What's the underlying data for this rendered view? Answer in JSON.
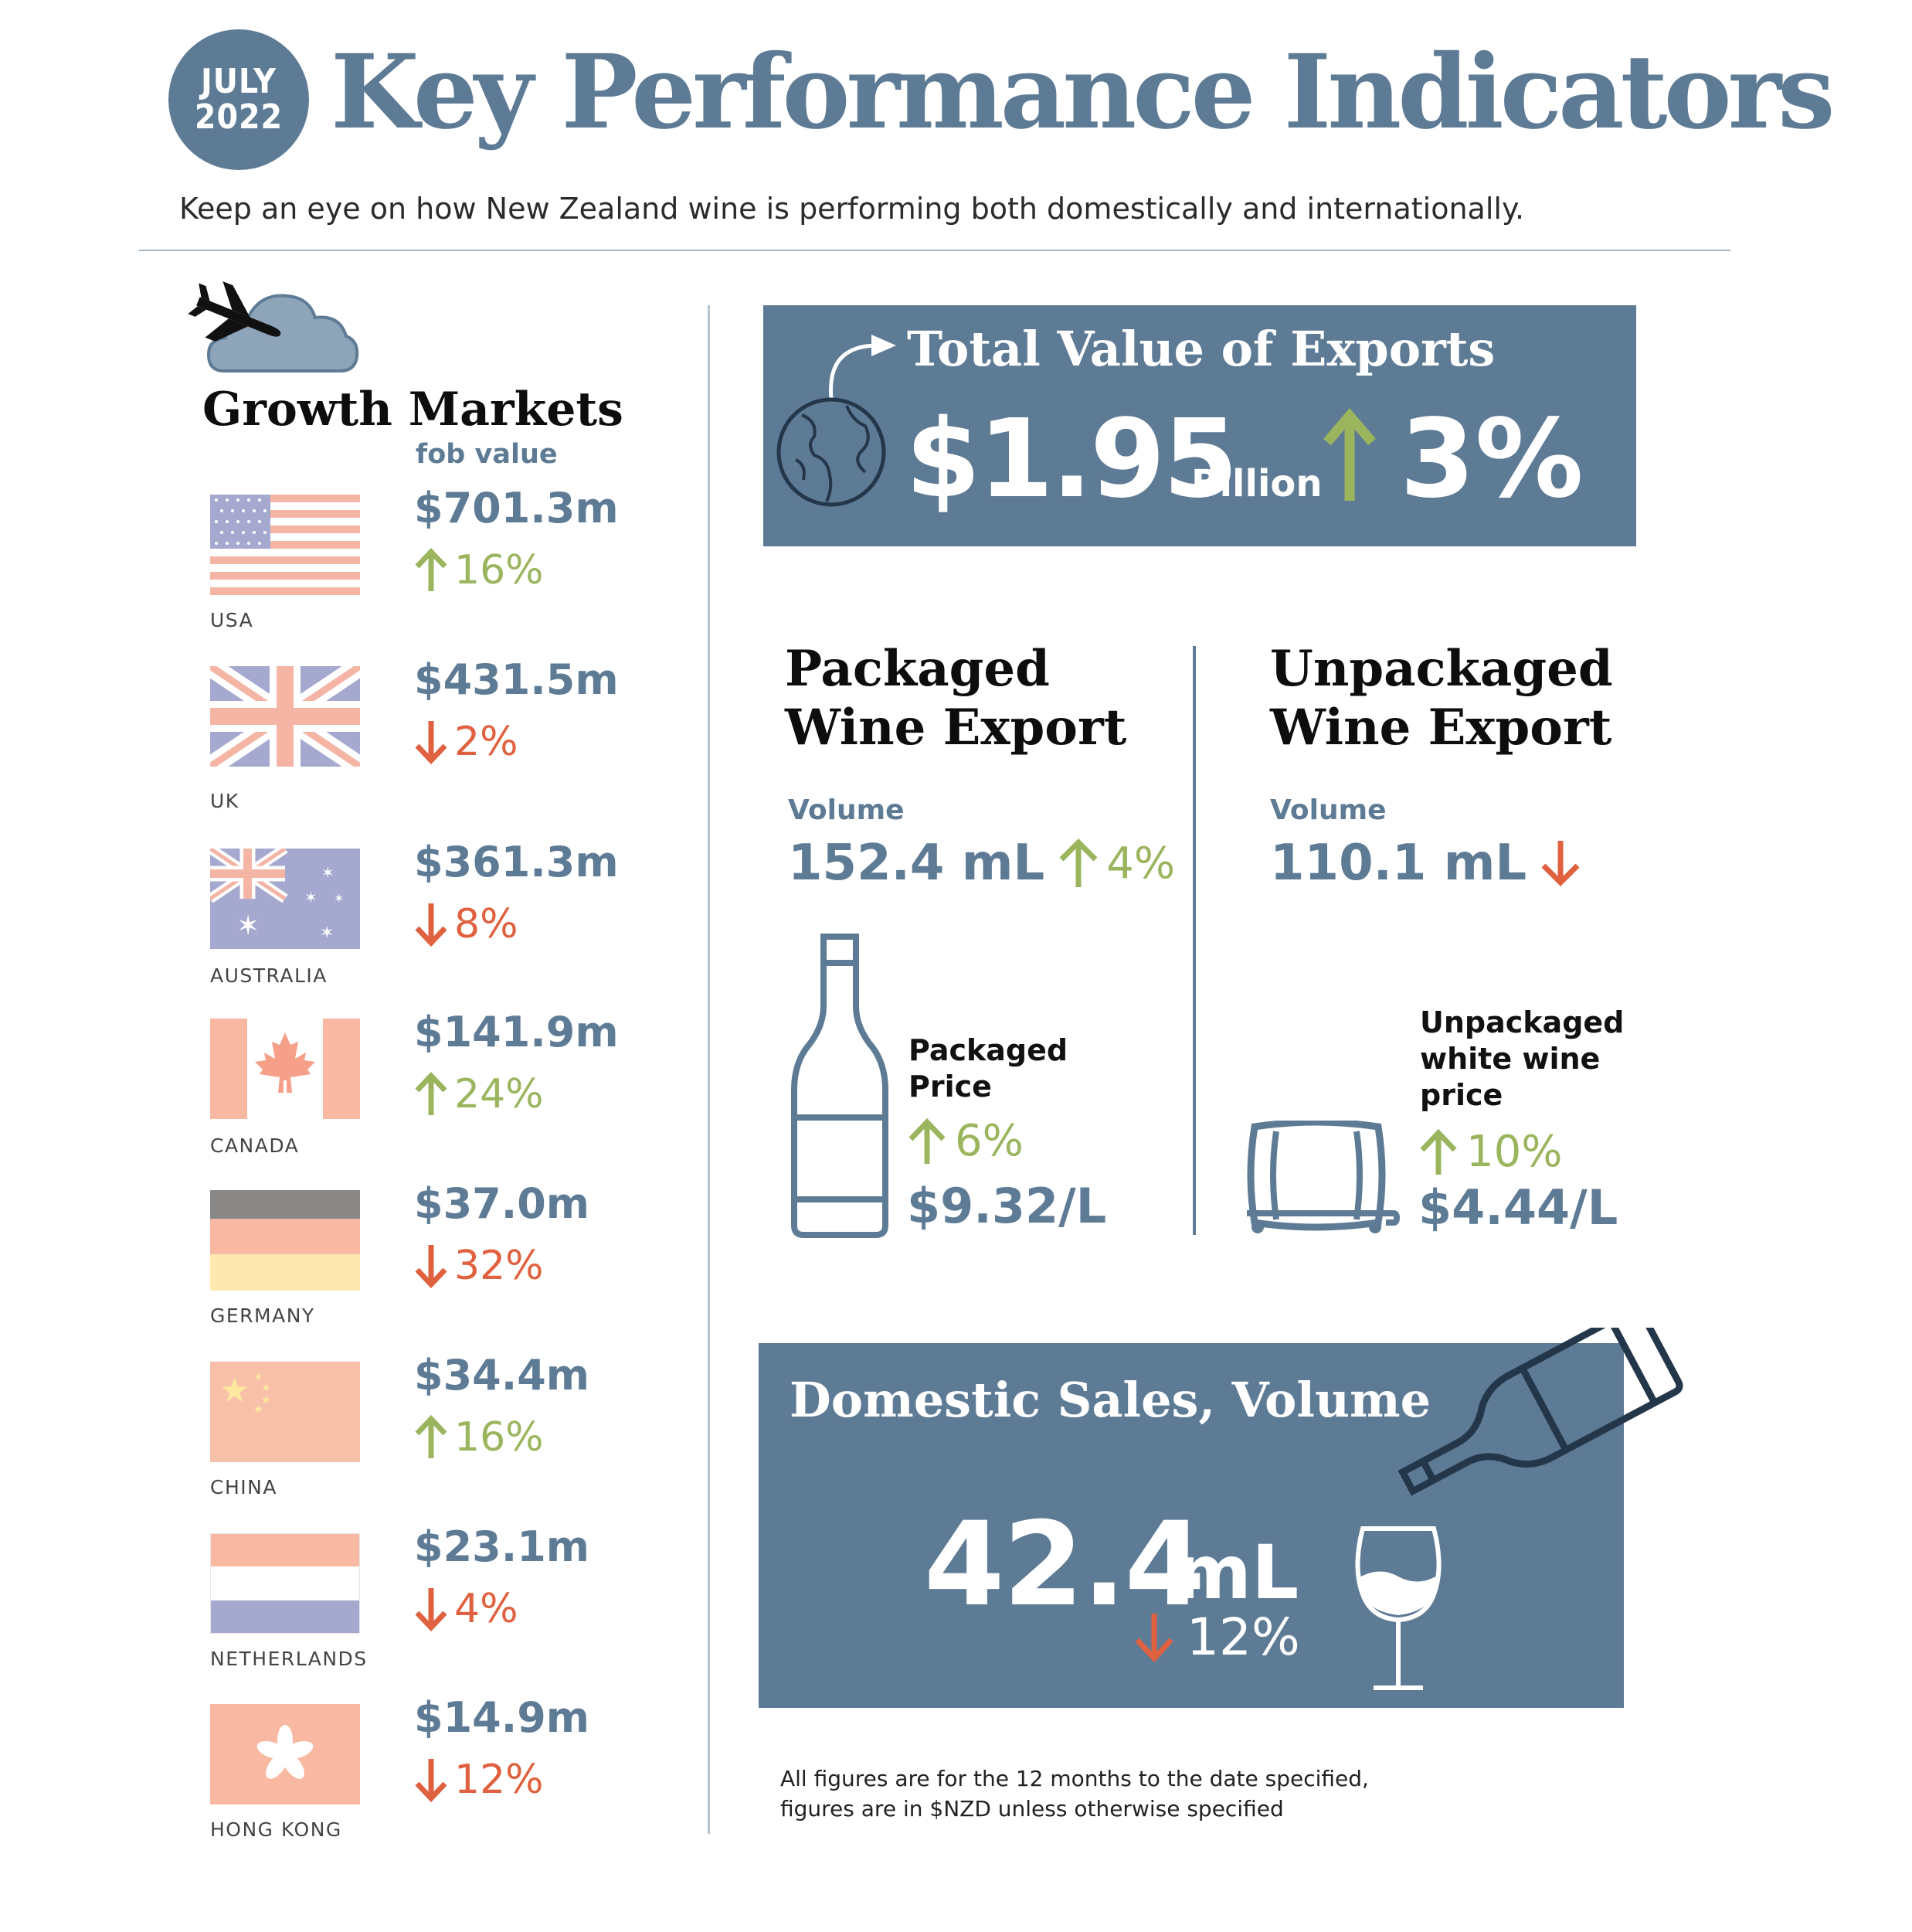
{
  "header": {
    "date_month": "JULY",
    "date_year": "2022",
    "title": "Key Performance Indicators",
    "subtitle": "Keep an eye on how New Zealand wine is performing both domestically and internationally."
  },
  "growth_markets": {
    "title": "Growth Markets",
    "subtitle": "fob value",
    "markets": [
      {
        "country": "USA",
        "value": "$701.3m",
        "change": "16%",
        "direction": "up"
      },
      {
        "country": "UK",
        "value": "$431.5m",
        "change": "2%",
        "direction": "down"
      },
      {
        "country": "AUSTRALIA",
        "value": "$361.3m",
        "change": "8%",
        "direction": "down"
      },
      {
        "country": "CANADA",
        "value": "$141.9m",
        "change": "24%",
        "direction": "up"
      },
      {
        "country": "GERMANY",
        "value": "$37.0m",
        "change": "32%",
        "direction": "down"
      },
      {
        "country": "CHINA",
        "value": "$34.4m",
        "change": "16%",
        "direction": "up"
      },
      {
        "country": "NETHERLANDS",
        "value": "$23.1m",
        "change": "4%",
        "direction": "down"
      },
      {
        "country": "HONG KONG",
        "value": "$14.9m",
        "change": "12%",
        "direction": "down"
      }
    ]
  },
  "total_exports": {
    "title": "Total Value of Exports",
    "value": "$1.95",
    "unit": "Billion",
    "change": "3%",
    "direction": "up"
  },
  "packaged": {
    "title_line1": "Packaged",
    "title_line2": "Wine Export",
    "volume_label": "Volume",
    "volume_value": "152.4 mL",
    "volume_change": "4%",
    "volume_direction": "up",
    "price_label_line1": "Packaged",
    "price_label_line2": "Price",
    "price_change": "6%",
    "price_direction": "up",
    "price_value": "$9.32/L"
  },
  "unpackaged": {
    "title_line1": "Unpackaged",
    "title_line2": "Wine Export",
    "volume_label": "Volume",
    "volume_value": "110.1 mL",
    "volume_direction": "down",
    "price_label_line1": "Unpackaged",
    "price_label_line2": "white wine",
    "price_label_line3": "price",
    "price_change": "10%",
    "price_direction": "up",
    "price_value": "$4.44/L"
  },
  "domestic": {
    "title": "Domestic Sales, Volume",
    "value": "42.4",
    "unit": "mL",
    "change": "12%",
    "direction": "down"
  },
  "footnote": {
    "line1": "All figures are for the 12 months to the date specified,",
    "line2": "figures are in $NZD unless otherwise specified"
  },
  "colors": {
    "brand": "#5e7b96",
    "up": "#9ab55e",
    "down": "#e0613f"
  },
  "icons": [
    "airplane-icon",
    "cloud-icon",
    "globe-icon",
    "curved-arrow-icon",
    "wine-bottle-icon",
    "barrel-icon",
    "pouring-bottle-icon",
    "wine-glass-icon",
    "arrow-up-icon",
    "arrow-down-icon"
  ]
}
